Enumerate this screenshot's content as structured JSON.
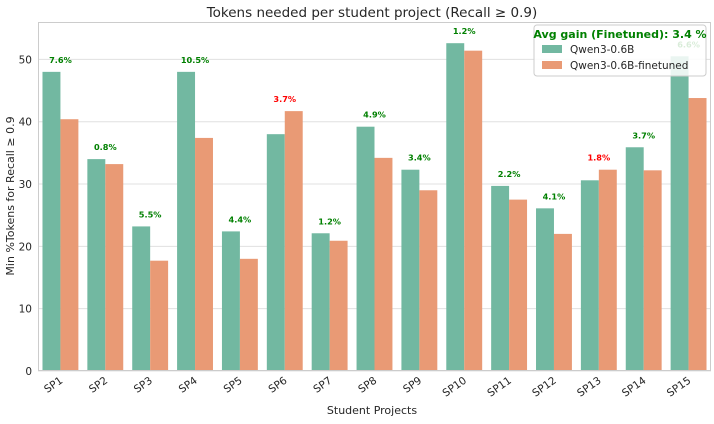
{
  "chart_data": {
    "type": "bar",
    "title": "Tokens needed per student project (Recall ≥ 0.9)",
    "xlabel": "Student Projects",
    "ylabel": "Min %Tokens for Recall ≥ 0.9",
    "ylim": [
      0,
      56
    ],
    "yticks": [
      0,
      10,
      20,
      30,
      40,
      50
    ],
    "grid": true,
    "legend_position": "top-right",
    "legend_title": "Avg gain (Finetuned): 3.4 %",
    "categories": [
      "SP1",
      "SP2",
      "SP3",
      "SP4",
      "SP5",
      "SP6",
      "SP7",
      "SP8",
      "SP9",
      "SP10",
      "SP11",
      "SP12",
      "SP13",
      "SP14",
      "SP15"
    ],
    "series": [
      {
        "name": "Qwen3-0.6B",
        "color": "#72b8a1",
        "values": [
          48.0,
          34.0,
          23.2,
          48.0,
          22.4,
          38.0,
          22.1,
          39.2,
          32.3,
          52.6,
          29.7,
          26.1,
          30.6,
          35.9,
          50.5
        ]
      },
      {
        "name": "Qwen3-0.6B-finetuned",
        "color": "#e99a75",
        "values": [
          40.4,
          33.2,
          17.7,
          37.4,
          18.0,
          41.7,
          20.9,
          34.2,
          29.0,
          51.4,
          27.5,
          22.0,
          32.3,
          32.2,
          43.8
        ]
      }
    ],
    "annotations": [
      "7.6%",
      "0.8%",
      "5.5%",
      "10.5%",
      "4.4%",
      "3.7%",
      "1.2%",
      "4.9%",
      "3.4%",
      "1.2%",
      "2.2%",
      "4.1%",
      "1.8%",
      "3.7%",
      "6.6%"
    ],
    "annotation_colors": [
      "#008000",
      "#008000",
      "#008000",
      "#008000",
      "#008000",
      "#ff0000",
      "#008000",
      "#008000",
      "#008000",
      "#008000",
      "#008000",
      "#008000",
      "#ff0000",
      "#008000",
      "#008000"
    ],
    "legend_title_color": "#008000"
  }
}
